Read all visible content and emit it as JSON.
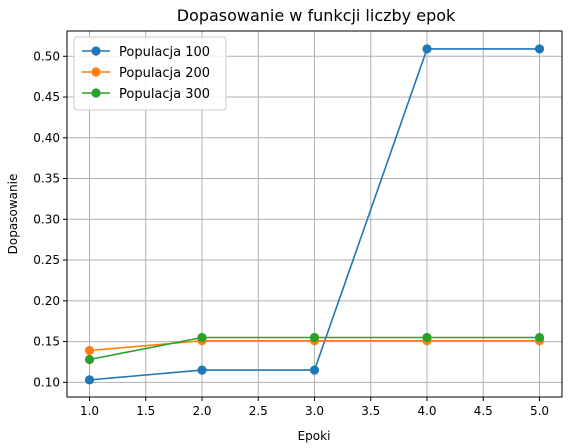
{
  "chart_data": {
    "type": "line",
    "title": "Dopasowanie w funkcji liczby epok",
    "xlabel": "Epoki",
    "ylabel": "Dopasowanie",
    "x": [
      1,
      2,
      3,
      4,
      5
    ],
    "xlim": [
      0.8,
      5.2
    ],
    "ylim": [
      0.082,
      0.531
    ],
    "xticks": [
      1.0,
      1.5,
      2.0,
      2.5,
      3.0,
      3.5,
      4.0,
      4.5,
      5.0
    ],
    "xtick_labels": [
      "1.0",
      "1.5",
      "2.0",
      "2.5",
      "3.0",
      "3.5",
      "4.0",
      "4.5",
      "5.0"
    ],
    "yticks": [
      0.1,
      0.15,
      0.2,
      0.25,
      0.3,
      0.35,
      0.4,
      0.45,
      0.5
    ],
    "ytick_labels": [
      "0.10",
      "0.15",
      "0.20",
      "0.25",
      "0.30",
      "0.35",
      "0.40",
      "0.45",
      "0.50"
    ],
    "grid": true,
    "legend_position": "top-left",
    "series": [
      {
        "name": "Populacja 100",
        "color": "#1f77b4",
        "values": [
          0.103,
          0.115,
          0.115,
          0.509,
          0.509
        ]
      },
      {
        "name": "Populacja 200",
        "color": "#ff7f0e",
        "values": [
          0.139,
          0.151,
          0.151,
          0.151,
          0.151
        ]
      },
      {
        "name": "Populacja 300",
        "color": "#2ca02c",
        "values": [
          0.128,
          0.155,
          0.155,
          0.155,
          0.155
        ]
      }
    ]
  }
}
